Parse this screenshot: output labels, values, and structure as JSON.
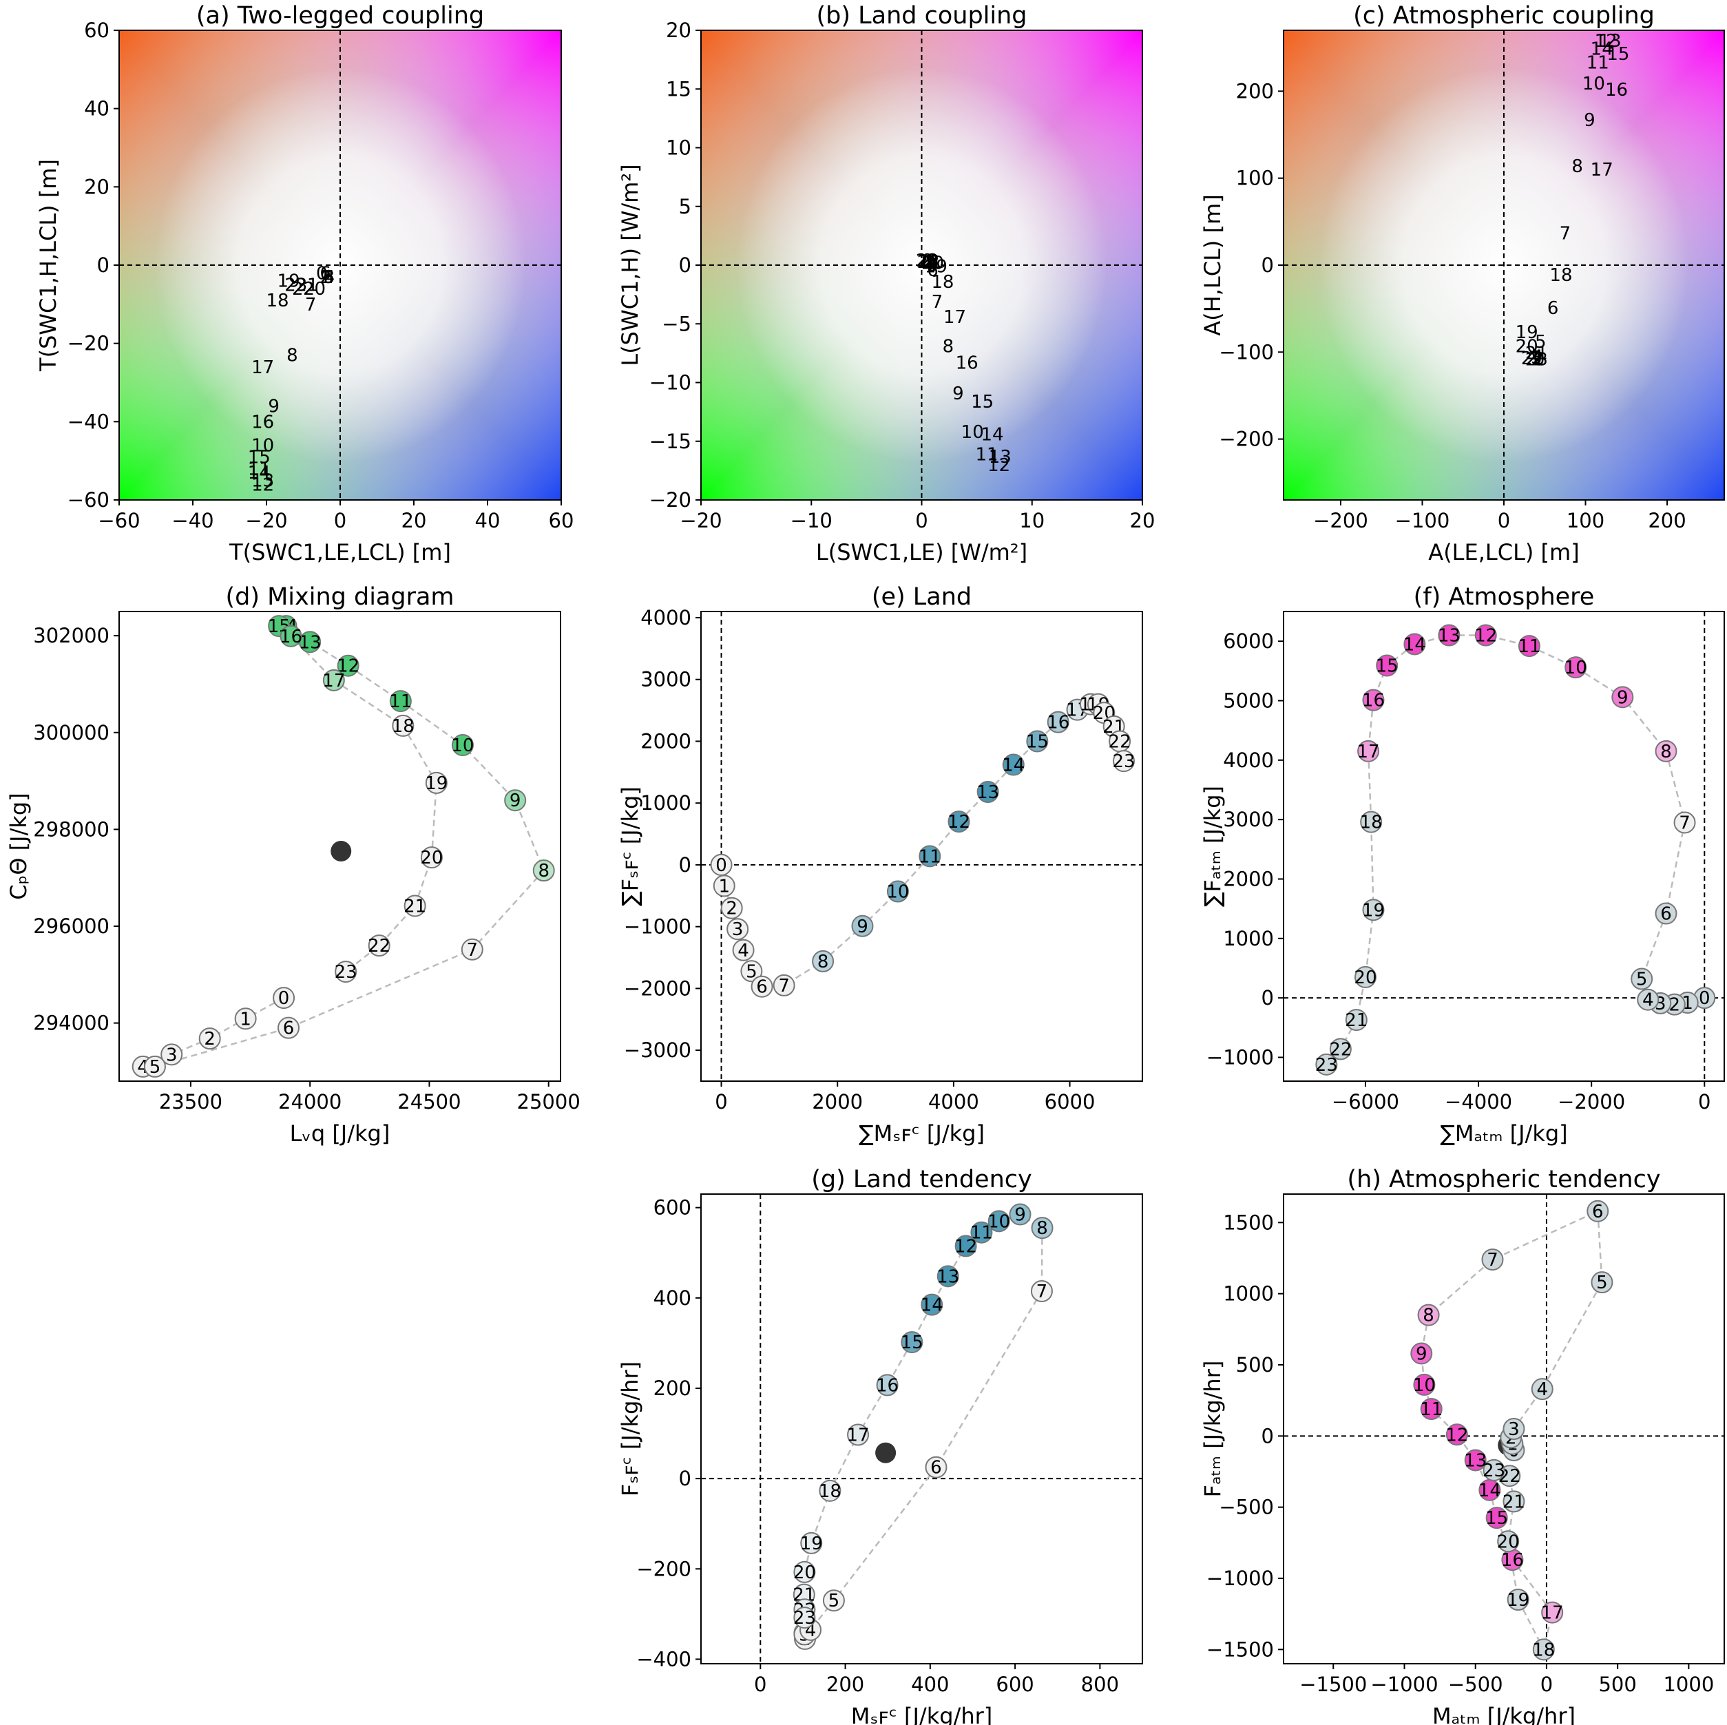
{
  "chart_data": [
    {
      "id": "a",
      "type": "scatter",
      "title": "(a) Two-legged coupling",
      "xlabel": "T(SWC1,LE,LCL) [m]",
      "ylabel": "T(SWC1,H,LCL) [m]",
      "xlim": [
        -60,
        60
      ],
      "ylim": [
        -60,
        60
      ],
      "xticks": [
        -60,
        -40,
        -20,
        0,
        20,
        40,
        60
      ],
      "yticks": [
        -60,
        -40,
        -20,
        0,
        20,
        40,
        60
      ],
      "background": "color-map",
      "crosshair": true,
      "grid": false,
      "labels": [
        "0",
        "1",
        "2",
        "3",
        "4",
        "5",
        "6",
        "7",
        "8",
        "9",
        "10",
        "11",
        "12",
        "13",
        "14",
        "15",
        "16",
        "17",
        "18",
        "19",
        "20",
        "21",
        "22",
        "23"
      ],
      "x": [
        -5,
        -4,
        -4,
        -3,
        -3,
        -3,
        -4,
        -8,
        -13,
        -18,
        -21,
        -22,
        -21,
        -21,
        -22,
        -22,
        -21,
        -21,
        -17,
        -14,
        -7,
        -9,
        -10,
        -12
      ],
      "y": [
        -2,
        -3,
        -3,
        -3,
        -3,
        -3,
        -2,
        -10,
        -23,
        -36,
        -46,
        -52,
        -56,
        -55,
        -53,
        -49,
        -40,
        -26,
        -9,
        -4,
        -6,
        -5,
        -6,
        -5
      ]
    },
    {
      "id": "b",
      "type": "scatter",
      "title": "(b) Land coupling",
      "xlabel": "L(SWC1,LE) [W/m²]",
      "ylabel": "L(SWC1,H) [W/m²]",
      "xlim": [
        -20,
        20
      ],
      "ylim": [
        -20,
        20
      ],
      "xticks": [
        -20,
        -10,
        0,
        10,
        20
      ],
      "yticks": [
        -20,
        -15,
        -10,
        -5,
        0,
        5,
        10,
        15,
        20
      ],
      "background": "color-map",
      "crosshair": true,
      "grid": false,
      "labels": [
        "0",
        "1",
        "2",
        "3",
        "4",
        "5",
        "6",
        "7",
        "8",
        "9",
        "10",
        "11",
        "12",
        "13",
        "14",
        "15",
        "16",
        "17",
        "18",
        "19",
        "20",
        "21",
        "22",
        "23"
      ],
      "x": [
        0.5,
        0.6,
        0.7,
        0.8,
        0.9,
        1.0,
        1.0,
        1.4,
        2.4,
        3.3,
        4.6,
        5.9,
        7.0,
        7.1,
        6.4,
        5.5,
        4.1,
        3.0,
        1.9,
        1.3,
        1.0,
        0.8,
        0.6,
        0.5
      ],
      "y": [
        0.4,
        0.3,
        0.3,
        0.2,
        0.1,
        0.0,
        -0.4,
        -3.1,
        -6.9,
        -10.9,
        -14.2,
        -16.1,
        -17.0,
        -16.3,
        -14.4,
        -11.6,
        -8.3,
        -4.4,
        -1.4,
        -0.1,
        0.2,
        0.3,
        0.3,
        0.4
      ]
    },
    {
      "id": "c",
      "type": "scatter",
      "title": "(c) Atmospheric coupling",
      "xlabel": "A(LE,LCL) [m]",
      "ylabel": "A(H,LCL) [m]",
      "xlim": [
        -270,
        270
      ],
      "ylim": [
        -270,
        270
      ],
      "xticks": [
        -200,
        -100,
        0,
        100,
        200
      ],
      "yticks": [
        -200,
        -100,
        0,
        100,
        200
      ],
      "background": "color-map",
      "crosshair": true,
      "grid": false,
      "labels": [
        "0",
        "1",
        "2",
        "3",
        "4",
        "5",
        "6",
        "7",
        "8",
        "9",
        "10",
        "11",
        "12",
        "13",
        "14",
        "15",
        "16",
        "17",
        "18",
        "19",
        "20",
        "21",
        "22",
        "23"
      ],
      "x": [
        43,
        42,
        41,
        40,
        41,
        45,
        60,
        75,
        90,
        105,
        110,
        115,
        125,
        130,
        120,
        140,
        138,
        120,
        70,
        28,
        28,
        40,
        35,
        40
      ],
      "y": [
        -108,
        -108,
        -107,
        -106,
        -105,
        -88,
        -49,
        37,
        114,
        167,
        209,
        233,
        258,
        258,
        249,
        243,
        202,
        110,
        -11,
        -77,
        -93,
        -101,
        -107,
        -108
      ]
    },
    {
      "id": "d",
      "type": "line",
      "title": "(d) Mixing diagram",
      "xlabel": "Lᵥq [J/kg]",
      "ylabel": "CₚΘ [J/kg]",
      "xlim": [
        23200,
        25050
      ],
      "ylim": [
        292800,
        302500
      ],
      "xticks": [
        23500,
        24000,
        24500,
        25000
      ],
      "yticks": [
        294000,
        296000,
        298000,
        300000,
        302000
      ],
      "xticklabels": [
        "23500",
        "24000",
        "24500",
        "25000"
      ],
      "yticklabels": [
        "294000",
        "296000",
        "298000",
        "300000",
        "302000"
      ],
      "extra_point": {
        "x": 24130,
        "y": 297550
      },
      "labels": [
        "0",
        "1",
        "2",
        "3",
        "4",
        "5",
        "6",
        "7",
        "8",
        "9",
        "10",
        "11",
        "12",
        "13",
        "14",
        "15",
        "16",
        "17",
        "18",
        "19",
        "20",
        "21",
        "22",
        "23"
      ],
      "x": [
        23890,
        23730,
        23580,
        23420,
        23300,
        23350,
        23910,
        24680,
        24980,
        24860,
        24640,
        24380,
        24160,
        24000,
        23900,
        23870,
        23920,
        24100,
        24390,
        24530,
        24510,
        24440,
        24290,
        24150
      ],
      "y": [
        294520,
        294090,
        293680,
        293350,
        293100,
        293100,
        293900,
        295520,
        297150,
        298600,
        299740,
        300650,
        301380,
        301870,
        302200,
        302200,
        301990,
        301080,
        300140,
        298960,
        297420,
        296420,
        295600,
        295060
      ]
    },
    {
      "id": "e",
      "type": "line",
      "title": "(e) Land",
      "xlabel": "∑Mₛꜰᶜ [J/kg]",
      "ylabel": "∑Fₛꜰᶜ [J/kg]",
      "xlim": [
        -350,
        7250
      ],
      "ylim": [
        -3500,
        4100
      ],
      "xticks": [
        0,
        2000,
        4000,
        6000
      ],
      "yticks": [
        -3000,
        -2000,
        -1000,
        0,
        1000,
        2000,
        3000,
        4000
      ],
      "labels": [
        "0",
        "1",
        "2",
        "3",
        "4",
        "5",
        "6",
        "7",
        "8",
        "9",
        "10",
        "11",
        "12",
        "13",
        "14",
        "15",
        "16",
        "17",
        "18",
        "19",
        "20",
        "21",
        "22",
        "23"
      ],
      "x": [
        0,
        50,
        180,
        280,
        380,
        520,
        700,
        1080,
        1750,
        2430,
        3040,
        3590,
        4090,
        4590,
        5030,
        5440,
        5800,
        6130,
        6360,
        6490,
        6590,
        6760,
        6860,
        6930
      ],
      "y": [
        0,
        -340,
        -700,
        -1040,
        -1380,
        -1720,
        -1970,
        -1950,
        -1560,
        -990,
        -430,
        140,
        700,
        1180,
        1620,
        2000,
        2310,
        2510,
        2600,
        2600,
        2460,
        2240,
        2000,
        1680
      ]
    },
    {
      "id": "f",
      "type": "line",
      "title": "(f) Atmosphere",
      "xlabel": "∑Mₐₜₘ [J/kg]",
      "ylabel": "∑Fₐₜₘ [J/kg]",
      "xlim": [
        -7450,
        350
      ],
      "ylim": [
        -1400,
        6500
      ],
      "xticks": [
        -6000,
        -4000,
        -2000,
        0
      ],
      "yticks": [
        -1000,
        0,
        1000,
        2000,
        3000,
        4000,
        5000,
        6000
      ],
      "labels": [
        "0",
        "1",
        "2",
        "3",
        "4",
        "5",
        "6",
        "7",
        "8",
        "9",
        "10",
        "11",
        "12",
        "13",
        "14",
        "15",
        "16",
        "17",
        "18",
        "19",
        "20",
        "21",
        "22",
        "23"
      ],
      "x": [
        0,
        -300,
        -530,
        -780,
        -1000,
        -1110,
        -680,
        -350,
        -680,
        -1450,
        -2280,
        -3100,
        -3870,
        -4520,
        -5130,
        -5620,
        -5860,
        -5950,
        -5900,
        -5860,
        -6000,
        -6160,
        -6440,
        -6690
      ],
      "y": [
        0,
        -80,
        -110,
        -90,
        -30,
        320,
        1420,
        2950,
        4150,
        5060,
        5560,
        5920,
        6100,
        6100,
        5950,
        5590,
        5010,
        4150,
        2960,
        1480,
        350,
        -370,
        -860,
        -1120
      ]
    },
    {
      "id": "g",
      "type": "line",
      "title": "(g) Land tendency",
      "xlabel": "Mₛꜰᶜ [J/kg/hr]",
      "ylabel": "Fₛꜰᶜ [J/kg/hr]",
      "xlim": [
        -140,
        900
      ],
      "ylim": [
        -410,
        630
      ],
      "xticks": [
        0,
        200,
        400,
        600,
        800
      ],
      "yticks": [
        -400,
        -200,
        0,
        200,
        400,
        600
      ],
      "extra_point": {
        "x": 295,
        "y": 57
      },
      "labels": [
        "0",
        "1",
        "2",
        "3",
        "4",
        "5",
        "6",
        "7",
        "8",
        "9",
        "10",
        "11",
        "12",
        "13",
        "14",
        "15",
        "16",
        "17",
        "18",
        "19",
        "20",
        "21",
        "22",
        "23"
      ],
      "x": [
        104,
        106,
        105,
        104,
        118,
        173,
        414,
        663,
        664,
        612,
        562,
        521,
        484,
        442,
        404,
        357,
        299,
        230,
        164,
        120,
        104,
        103,
        104,
        104
      ],
      "y": [
        -342,
        -350,
        -355,
        -345,
        -335,
        -270,
        25,
        415,
        555,
        585,
        570,
        545,
        515,
        448,
        385,
        302,
        207,
        97,
        -27,
        -143,
        -207,
        -257,
        -290,
        -308
      ]
    },
    {
      "id": "h",
      "type": "line",
      "title": "(h) Atmospheric tendency",
      "xlabel": "Mₐₜₘ [J/kg/hr]",
      "ylabel": "Fₐₜₘ [J/kg/hr]",
      "xlim": [
        -1850,
        1250
      ],
      "ylim": [
        -1600,
        1700
      ],
      "xticks": [
        -1500,
        -1000,
        -500,
        0,
        500,
        1000
      ],
      "yticks": [
        -1500,
        -1000,
        -500,
        0,
        500,
        1000,
        1500
      ],
      "extra_point": {
        "x": -270,
        "y": -65
      },
      "labels": [
        "0",
        "1",
        "2",
        "3",
        "4",
        "5",
        "6",
        "7",
        "8",
        "9",
        "10",
        "11",
        "12",
        "13",
        "14",
        "15",
        "16",
        "17",
        "18",
        "19",
        "20",
        "21",
        "22",
        "23"
      ],
      "x": [
        -230,
        -240,
        -250,
        -230,
        -30,
        390,
        360,
        -380,
        -830,
        -880,
        -860,
        -810,
        -630,
        -500,
        -400,
        -350,
        -240,
        40,
        -20,
        -200,
        -270,
        -230,
        -260,
        -370
      ],
      "y": [
        -100,
        -55,
        -10,
        50,
        330,
        1080,
        1580,
        1240,
        850,
        580,
        360,
        190,
        10,
        -170,
        -380,
        -575,
        -870,
        -1240,
        -1500,
        -1150,
        -740,
        -460,
        -280,
        -240
      ]
    }
  ]
}
